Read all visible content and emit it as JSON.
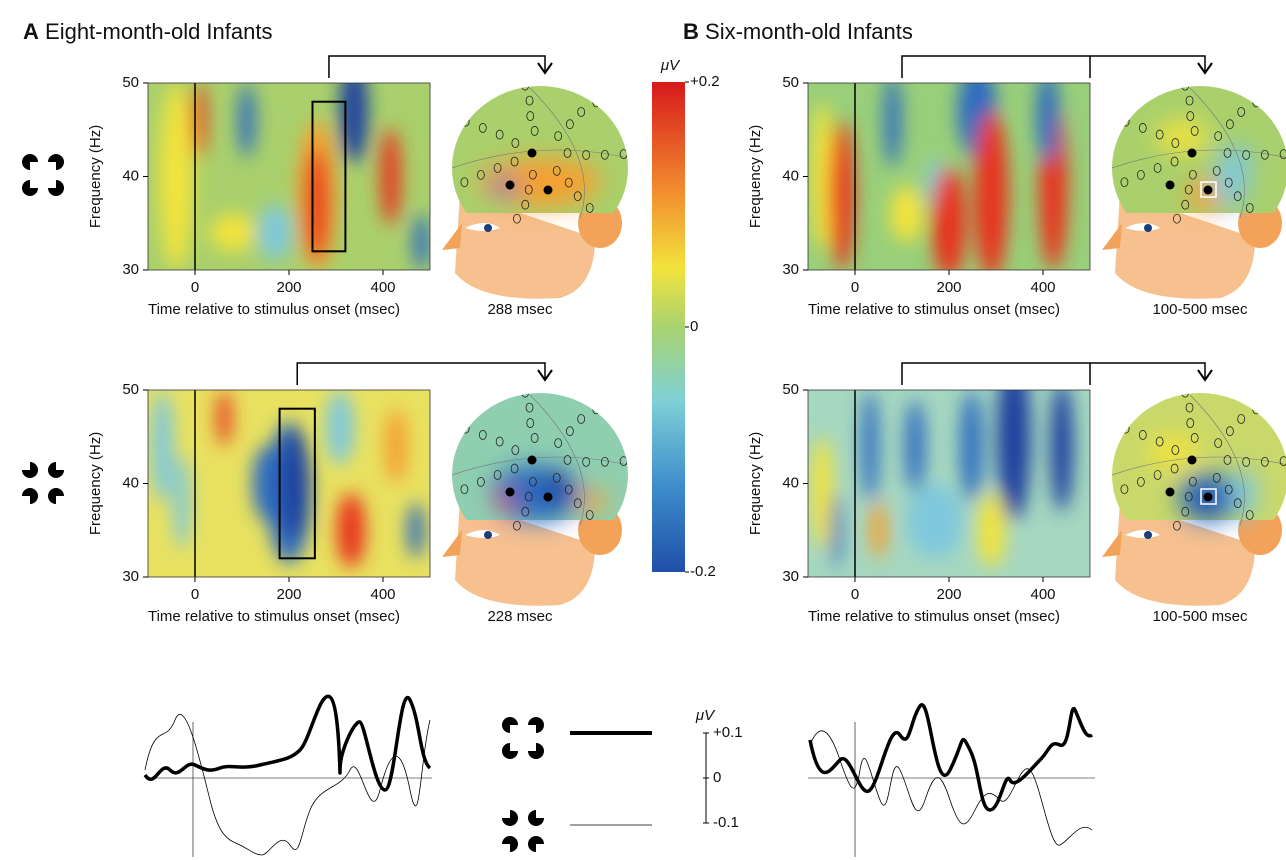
{
  "panels": [
    {
      "letter": "A",
      "title": "Eight-month-old Infants",
      "plots": [
        {
          "xlabel": "Time relative to stimulus onset (msec)",
          "ylabel": "Frequency (Hz)",
          "xlim": [
            -100,
            500
          ],
          "ylim": [
            30,
            50
          ],
          "xticks": [
            0,
            200,
            400
          ],
          "yticks": [
            30,
            40,
            50
          ],
          "window": [
            250,
            320
          ],
          "window_freq": [
            32,
            48
          ],
          "map_caption": "288 msec"
        },
        {
          "xlabel": "Time relative to stimulus onset (msec)",
          "ylabel": "Frequency (Hz)",
          "xlim": [
            -100,
            500
          ],
          "ylim": [
            30,
            50
          ],
          "xticks": [
            0,
            200,
            400
          ],
          "yticks": [
            30,
            40,
            50
          ],
          "window": [
            180,
            255
          ],
          "window_freq": [
            32,
            48
          ],
          "map_caption": "228 msec"
        }
      ]
    },
    {
      "letter": "B",
      "title": "Six-month-old Infants",
      "plots": [
        {
          "xlabel": "Time relative to stimulus onset (msec)",
          "ylabel": "Frequency (Hz)",
          "xlim": [
            -100,
            500
          ],
          "ylim": [
            30,
            50
          ],
          "xticks": [
            0,
            200,
            400
          ],
          "yticks": [
            30,
            40,
            50
          ],
          "window": [
            100,
            500
          ],
          "map_caption": "100-500 msec"
        },
        {
          "xlabel": "Time relative to stimulus onset (msec)",
          "ylabel": "Frequency (Hz)",
          "xlim": [
            -100,
            500
          ],
          "ylim": [
            30,
            50
          ],
          "xticks": [
            0,
            200,
            400
          ],
          "yticks": [
            30,
            40,
            50
          ],
          "window": [
            100,
            500
          ],
          "map_caption": "100-500 msec"
        }
      ]
    }
  ],
  "colorbar": {
    "unit": "μV",
    "lim": [
      -0.2,
      0.2
    ],
    "ticks": [
      {
        "value": 0.2,
        "label": "+0.2"
      },
      0,
      -0.2
    ]
  },
  "waveform_scale": {
    "unit": "μV",
    "lim": [
      -0.1,
      0.1
    ],
    "ticks": [
      {
        "value": 0.1,
        "label": "+0.1"
      },
      0,
      -0.1
    ]
  }
}
